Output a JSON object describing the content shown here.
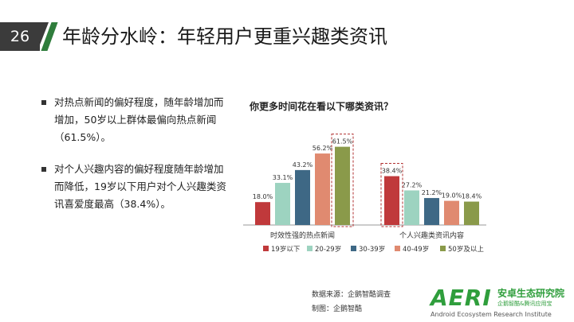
{
  "header": {
    "page_number": "26",
    "title": "年龄分水岭：年轻用户更重兴趣类资讯"
  },
  "bullets": [
    "对热点新闻的偏好程度，随年龄增加而增加，50岁以上群体最偏向热点新闻（61.5%）。",
    "对个人兴趣内容的偏好程度随年龄增加而降低，19岁以下用户对个人兴趣类资讯喜爱度最高（38.4%）。"
  ],
  "chart_data": {
    "type": "bar",
    "title": "你更多时间花在看以下哪类资讯？",
    "categories": [
      "时效性强的热点新闻",
      "个人兴趣类资讯内容"
    ],
    "series": [
      {
        "name": "19岁以下",
        "color": "#c0393b",
        "values": [
          18.0,
          38.4
        ],
        "labels": [
          "18.0%",
          "38.4%"
        ]
      },
      {
        "name": "20-29岁",
        "color": "#9dd3c0",
        "values": [
          33.1,
          27.2
        ],
        "labels": [
          "33.1%",
          "27.2%"
        ]
      },
      {
        "name": "30-39岁",
        "color": "#3e6885",
        "values": [
          43.2,
          21.2
        ],
        "labels": [
          "43.2%",
          "21.2%"
        ]
      },
      {
        "name": "40-49岁",
        "color": "#e08a70",
        "values": [
          56.2,
          19.0
        ],
        "labels": [
          "56.2%",
          "19.0%"
        ]
      },
      {
        "name": "50岁及以上",
        "color": "#8a9a4a",
        "values": [
          61.5,
          18.4
        ],
        "labels": [
          "61.5%",
          "18.4%"
        ]
      }
    ],
    "ylim": [
      0,
      70
    ],
    "highlight": [
      {
        "category": 0,
        "series": 4
      },
      {
        "category": 1,
        "series": 0
      }
    ],
    "legend": "bottom"
  },
  "source": {
    "line1": "数据来源：企鹅智酷调查",
    "line2": "制图：企鹅智酷"
  },
  "logo": {
    "mark": "AERI",
    "cn": "安卓生态研究院",
    "sub": "企鹅智酷&腾讯应用宝",
    "en": "Android Ecosystem Research Institute"
  }
}
